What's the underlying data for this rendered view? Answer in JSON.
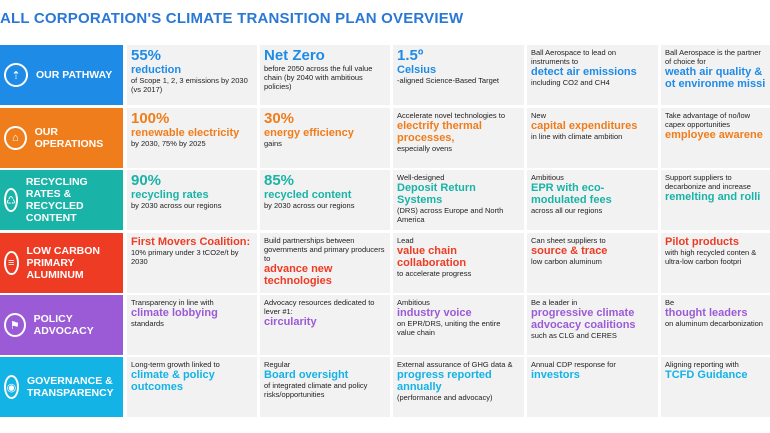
{
  "title": "ALL CORPORATION'S CLIMATE TRANSITION PLAN OVERVIEW",
  "rows": [
    {
      "label": "OUR PATHWAY",
      "color": "#1e8be6",
      "accent": "#1e8be6",
      "icon": "road-icon",
      "cells": [
        {
          "hl": "55%",
          "hl2": " reduction",
          "txt": "of Scope 1, 2, 3 emissions by 2030 (vs 2017)"
        },
        {
          "hl": "Net Zero",
          "txt": "before 2050 across the full value chain (by 2040 with ambitious policies)"
        },
        {
          "hl": "1.5º",
          "hl2": " Celsius",
          "txt": "-aligned Science-Based Target"
        },
        {
          "pre": "Ball Aerospace to lead on instruments to",
          "hl": "detect air emissions",
          "txt": "including CO2 and CH4"
        },
        {
          "pre": "Ball Aerospace is the partner of choice for",
          "hl": "weath air quality & ot environme missi",
          "txt": ""
        }
      ]
    },
    {
      "label": "OUR OPERATIONS",
      "color": "#f07d1b",
      "accent": "#f07d1b",
      "icon": "factory-icon",
      "cells": [
        {
          "hl": "100%",
          "hl2": "renewable electricity",
          "txt": "by 2030, 75% by 2025"
        },
        {
          "hl": "30%",
          "hl2": "energy efficiency",
          "txt": "gains"
        },
        {
          "pre": "Accelerate novel technologies to",
          "hl": "electrify thermal processes,",
          "txt": "especially ovens"
        },
        {
          "pre": "New",
          "hl": "capital expenditures",
          "txt": "in line with climate ambition"
        },
        {
          "pre": "Take advantage of no/low capex opportunities",
          "hl": "employee awarene",
          "txt": ""
        }
      ]
    },
    {
      "label": "RECYCLING RATES & RECYCLED CONTENT",
      "color": "#1ab3a7",
      "accent": "#1ab3a7",
      "icon": "recycle-icon",
      "cells": [
        {
          "hl": "90%",
          "hl2": "recycling rates",
          "txt": "by 2030 across our regions"
        },
        {
          "hl": "85%",
          "hl2": "recycled content",
          "txt": "by 2030 across our regions"
        },
        {
          "pre": "Well-designed",
          "hl": "Deposit Return Systems",
          "txt": "(DRS) across Europe and North America"
        },
        {
          "pre": "Ambitious",
          "hl": "EPR with eco-modulated fees",
          "txt": "across all our regions"
        },
        {
          "pre": "Support suppliers to decarbonize and increase",
          "hl": "remelting and rolli",
          "txt": ""
        }
      ]
    },
    {
      "label": "LOW CARBON PRIMARY ALUMINUM",
      "color": "#ee3b24",
      "accent": "#ee3b24",
      "icon": "bars-icon",
      "cells": [
        {
          "hl": "First Movers Coalition:",
          "txt": "10% primary under 3 tCO2e/t by 2030"
        },
        {
          "pre": "Build partnerships between governments and primary producers to",
          "hl": "advance new technologies",
          "txt": ""
        },
        {
          "pre": "Lead",
          "hl": "value chain collaboration",
          "txt": "to accelerate progress"
        },
        {
          "pre": "Can sheet suppliers to",
          "hl": "source & trace",
          "txt": "low carbon aluminum"
        },
        {
          "hl": "Pilot products",
          "txt": "with high recycled conten & ultra-low carbon footpri"
        }
      ]
    },
    {
      "label": "POLICY ADVOCACY",
      "color": "#9b5bd6",
      "accent": "#9b5bd6",
      "icon": "flag-icon",
      "cells": [
        {
          "pre": "Transparency in line with",
          "hl": "climate lobbying",
          "txt": "standards"
        },
        {
          "pre": "Advocacy resources dedicated to lever #1:",
          "hl": "circularity",
          "txt": ""
        },
        {
          "pre": "Ambitious",
          "hl": "industry voice",
          "txt": "on EPR/DRS, uniting the entire value chain"
        },
        {
          "pre": "Be a leader in",
          "hl": "progressive climate advocacy coalitions",
          "txt": "such as CLG and CERES"
        },
        {
          "pre": "Be",
          "hl": "thought leaders",
          "txt": "on aluminum decarbonization"
        }
      ]
    },
    {
      "label": "GOVERNANCE & TRANSPARENCY",
      "color": "#13b3e6",
      "accent": "#13b3e6",
      "icon": "eye-icon",
      "cells": [
        {
          "pre": "Long-term growth linked to",
          "hl": "climate & policy outcomes",
          "txt": ""
        },
        {
          "pre": "Regular",
          "hl": "Board oversight",
          "txt": "of integrated climate and policy risks/opportunities"
        },
        {
          "pre": "External assurance of GHG data &",
          "hl": "progress reported annually",
          "txt": "(performance and advocacy)"
        },
        {
          "pre": "Annual CDP response for",
          "hl": "investors",
          "txt": ""
        },
        {
          "pre": "Aligning reporting with",
          "hl": "TCFD Guidance",
          "txt": ""
        }
      ]
    }
  ]
}
